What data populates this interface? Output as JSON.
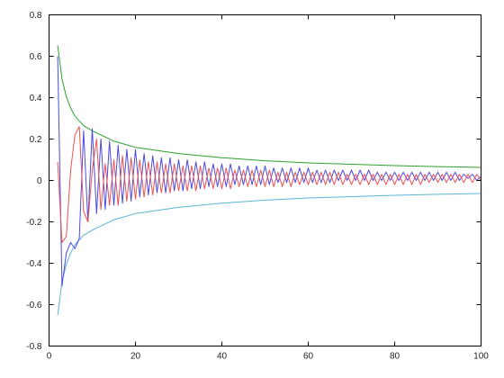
{
  "chart_data": {
    "type": "line",
    "title": "",
    "xlabel": "",
    "ylabel": "",
    "xlim": [
      0,
      100
    ],
    "ylim": [
      -0.8,
      0.8
    ],
    "x_ticks": [
      "0",
      "20",
      "40",
      "60",
      "80",
      "100"
    ],
    "y_ticks": [
      "-0.8",
      "-0.6",
      "-0.4",
      "-0.2",
      "0",
      "0.2",
      "0.4",
      "0.6",
      "0.8"
    ],
    "grid": false,
    "legend": "none",
    "series": [
      {
        "color": "#2ca02c",
        "x": [
          2,
          3,
          4,
          5,
          6,
          8,
          10,
          15,
          20,
          30,
          40,
          50,
          60,
          70,
          80,
          90,
          100
        ],
        "y": [
          0.652,
          0.49,
          0.405,
          0.35,
          0.31,
          0.265,
          0.24,
          0.19,
          0.16,
          0.13,
          0.11,
          0.095,
          0.085,
          0.078,
          0.072,
          0.067,
          0.063
        ]
      },
      {
        "color": "#5ab4d6",
        "x": [
          2,
          3,
          4,
          5,
          6,
          8,
          10,
          15,
          20,
          30,
          40,
          50,
          60,
          70,
          80,
          90,
          100
        ],
        "y": [
          -0.652,
          -0.49,
          -0.405,
          -0.35,
          -0.31,
          -0.265,
          -0.24,
          -0.19,
          -0.16,
          -0.13,
          -0.11,
          -0.095,
          -0.085,
          -0.078,
          -0.072,
          -0.067,
          -0.063
        ]
      },
      {
        "color": "#4a4ae6",
        "x": [
          2,
          3,
          4,
          5,
          6,
          7,
          8,
          9,
          10,
          11,
          12,
          13,
          14,
          15,
          16,
          17,
          18,
          19,
          20,
          21,
          22,
          23,
          24,
          25,
          26,
          27,
          28,
          29,
          30,
          31,
          32,
          33,
          34,
          35,
          36,
          37,
          38,
          39,
          40,
          41,
          42,
          43,
          44,
          45,
          46,
          47,
          48,
          49,
          50,
          51,
          52,
          53,
          54,
          55,
          56,
          57,
          58,
          59,
          60,
          61,
          62,
          63,
          64,
          65,
          66,
          67,
          68,
          69,
          70,
          71,
          72,
          73,
          74,
          75,
          76,
          77,
          78,
          79,
          80,
          81,
          82,
          83,
          84,
          85,
          86,
          87,
          88,
          89,
          90,
          91,
          92,
          93,
          94,
          95,
          96,
          97,
          98,
          99,
          100
        ],
        "y": [
          0.6,
          -0.51,
          -0.35,
          -0.3,
          -0.33,
          -0.28,
          0.24,
          -0.2,
          0.25,
          -0.16,
          0.2,
          -0.14,
          0.19,
          -0.12,
          0.17,
          -0.11,
          0.15,
          -0.1,
          0.15,
          -0.08,
          0.13,
          -0.07,
          0.12,
          -0.06,
          0.11,
          -0.06,
          0.11,
          -0.05,
          0.1,
          -0.05,
          0.1,
          -0.04,
          0.09,
          -0.04,
          0.09,
          -0.03,
          0.08,
          -0.03,
          0.08,
          -0.03,
          0.08,
          -0.02,
          0.07,
          -0.02,
          0.07,
          -0.02,
          0.07,
          -0.02,
          0.07,
          -0.02,
          0.06,
          -0.01,
          0.06,
          -0.01,
          0.06,
          -0.01,
          0.06,
          -0.01,
          0.06,
          -0.01,
          0.05,
          -0.01,
          0.05,
          -0.01,
          0.05,
          0,
          0.05,
          0,
          0.05,
          0,
          0.05,
          0,
          0.05,
          0,
          0.04,
          0,
          0.04,
          0,
          0.04,
          0,
          0.04,
          0,
          0.04,
          0,
          0.04,
          0,
          0.04,
          0,
          0.04,
          0,
          0.04,
          0,
          0.04,
          0,
          0.03,
          0.01,
          0.03,
          0,
          0.02
        ]
      },
      {
        "color": "#f05050",
        "x": [
          2,
          3,
          4,
          5,
          6,
          7,
          8,
          9,
          10,
          11,
          12,
          13,
          14,
          15,
          16,
          17,
          18,
          19,
          20,
          21,
          22,
          23,
          24,
          25,
          26,
          27,
          28,
          29,
          30,
          31,
          32,
          33,
          34,
          35,
          36,
          37,
          38,
          39,
          40,
          41,
          42,
          43,
          44,
          45,
          46,
          47,
          48,
          49,
          50,
          51,
          52,
          53,
          54,
          55,
          56,
          57,
          58,
          59,
          60,
          61,
          62,
          63,
          64,
          65,
          66,
          67,
          68,
          69,
          70,
          71,
          72,
          73,
          74,
          75,
          76,
          77,
          78,
          79,
          80,
          81,
          82,
          83,
          84,
          85,
          86,
          87,
          88,
          89,
          90,
          91,
          92,
          93,
          94,
          95,
          96,
          97,
          98,
          99,
          100
        ],
        "y": [
          0.09,
          -0.3,
          -0.27,
          0.05,
          0.22,
          0.26,
          -0.15,
          -0.2,
          0.05,
          0.2,
          -0.14,
          0.08,
          -0.12,
          0.1,
          -0.12,
          0.12,
          -0.1,
          0.11,
          -0.09,
          0.1,
          -0.08,
          0.09,
          -0.07,
          0.09,
          -0.06,
          0.08,
          -0.06,
          0.08,
          -0.05,
          0.07,
          -0.05,
          0.07,
          -0.05,
          0.07,
          -0.04,
          0.06,
          -0.04,
          0.06,
          -0.04,
          0.06,
          -0.04,
          0.05,
          -0.03,
          0.05,
          -0.03,
          0.05,
          -0.03,
          0.05,
          -0.03,
          0.05,
          -0.03,
          0.04,
          -0.03,
          0.04,
          -0.03,
          0.04,
          -0.02,
          0.04,
          -0.02,
          0.04,
          -0.02,
          0.04,
          -0.02,
          0.04,
          -0.02,
          0.04,
          -0.02,
          0.03,
          -0.02,
          0.03,
          -0.02,
          0.03,
          -0.02,
          0.03,
          -0.02,
          0.03,
          -0.02,
          0.03,
          -0.02,
          0.03,
          -0.02,
          0.03,
          -0.02,
          0.03,
          -0.02,
          0.03,
          -0.01,
          0.03,
          -0.01,
          0.03,
          -0.01,
          0.03,
          -0.01,
          0.03,
          -0.01,
          0.03,
          -0.01,
          0.03,
          0
        ]
      }
    ]
  }
}
